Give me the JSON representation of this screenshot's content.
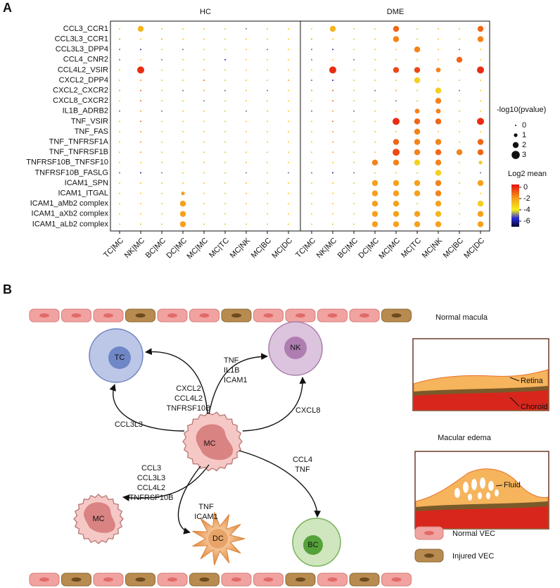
{
  "chart_data": {
    "type": "dotplot",
    "panel_label": "A",
    "panels": [
      "HC",
      "DME"
    ],
    "x_categories": [
      "TC|MC",
      "NK|MC",
      "BC|MC",
      "DC|MC",
      "MC|MC",
      "MC|TC",
      "MC|NK",
      "MC|BC",
      "MC|DC",
      "TC|MC",
      "NK|MC",
      "BC|MC",
      "DC|MC",
      "MC|MC",
      "MC|TC",
      "MC|NK",
      "MC|BC",
      "MC|DC"
    ],
    "y_categories": [
      "CCL3_CCR1",
      "CCL3L3_CCR1",
      "CCL3L3_DPP4",
      "CCL4_CNR2",
      "CCL4L2_VSIR",
      "CXCL2_DPP4",
      "CXCL2_CXCR2",
      "CXCL8_CXCR2",
      "IL1B_ADRB2",
      "TNF_VSIR",
      "TNF_FAS",
      "TNF_TNFRSF1A",
      "TNF_TNFRSF1B",
      "TNFRSF10B_TNFSF10",
      "TNFRSF10B_FASLG",
      "ICAM1_SPN",
      "ICAM1_ITGAL",
      "ICAM1_aMb2 complex",
      "ICAM1_aXb2 complex",
      "ICAM1_aLb2 complex"
    ],
    "size": [
      [
        0,
        2,
        0,
        0,
        0,
        0,
        0,
        0,
        0,
        0,
        2,
        0,
        0,
        2,
        0,
        0,
        0,
        2
      ],
      [
        0,
        0,
        0,
        0,
        0,
        0,
        0,
        0,
        0,
        0,
        0,
        0,
        0,
        2,
        0,
        0,
        0,
        2
      ],
      [
        0,
        0,
        0,
        0,
        0,
        0,
        0,
        0,
        0,
        0,
        0,
        0,
        0,
        0,
        2,
        0,
        0,
        0
      ],
      [
        0,
        0,
        0,
        0,
        0,
        0,
        0,
        0,
        0,
        0,
        0,
        0,
        0,
        0,
        0,
        0,
        2,
        0
      ],
      [
        0,
        2.5,
        0,
        0,
        0,
        0,
        0,
        0,
        0,
        0,
        2.5,
        0,
        0,
        2,
        2,
        1.5,
        0,
        2.5
      ],
      [
        0,
        0,
        0,
        0,
        0,
        0,
        0,
        0,
        0,
        0,
        0,
        0,
        0,
        0,
        2,
        0,
        0,
        0
      ],
      [
        0,
        0,
        0,
        0,
        0,
        0,
        0,
        0,
        0,
        0,
        0,
        0,
        0,
        0,
        0,
        2,
        0,
        0
      ],
      [
        0,
        0,
        0,
        0,
        0,
        0,
        0,
        0,
        0,
        0,
        0,
        0,
        0,
        0,
        0,
        2,
        0,
        0
      ],
      [
        0,
        0,
        0,
        0,
        0,
        0,
        0,
        0,
        0,
        0,
        0,
        0,
        0,
        0,
        1.5,
        1.5,
        0,
        0
      ],
      [
        0,
        0,
        0,
        0,
        0,
        0,
        0,
        0,
        0,
        0,
        0,
        0,
        0,
        2.5,
        2,
        2,
        0,
        2.5
      ],
      [
        0,
        0,
        0,
        0,
        0,
        0,
        0,
        0,
        0,
        0,
        0,
        0,
        0,
        0,
        2,
        0,
        0,
        0
      ],
      [
        0,
        0,
        0,
        0,
        0,
        0,
        0,
        0,
        0,
        0,
        0,
        0,
        0,
        2,
        2,
        2,
        0,
        2
      ],
      [
        0,
        0,
        0,
        0,
        0,
        0,
        0,
        0,
        0,
        0,
        0,
        0,
        0,
        2.5,
        2,
        2,
        2,
        2
      ],
      [
        0,
        0,
        0,
        0,
        0,
        0,
        0,
        0,
        0,
        0,
        0,
        0,
        2,
        2,
        2,
        2,
        0,
        1
      ],
      [
        0,
        0,
        0,
        0,
        0,
        0,
        0,
        0,
        0,
        0,
        0,
        0,
        0,
        0,
        0,
        2,
        0,
        0
      ],
      [
        0,
        0,
        0,
        0,
        0,
        0,
        0,
        0,
        0,
        0,
        0,
        0,
        2,
        2,
        2,
        2,
        0,
        2
      ],
      [
        0,
        0,
        0,
        1,
        0,
        0,
        0,
        0,
        0,
        0,
        0,
        0,
        2,
        2,
        2,
        2,
        0,
        0
      ],
      [
        0,
        0,
        0,
        2,
        0,
        0,
        0,
        0,
        0,
        0,
        0,
        0,
        2,
        2,
        0,
        2,
        0,
        2
      ],
      [
        0,
        0,
        0,
        2,
        0,
        0,
        0,
        0,
        0,
        0,
        0,
        0,
        2,
        2,
        2,
        2,
        0,
        2
      ],
      [
        0,
        0,
        0,
        2,
        0,
        0,
        0,
        0,
        0,
        0,
        0,
        0,
        2,
        2,
        2,
        2,
        0,
        2
      ]
    ],
    "color_values": [
      [
        -3,
        -2.5,
        -3,
        -3,
        -3,
        -3,
        -5,
        -3,
        -3,
        -3,
        -2.5,
        -3,
        -3,
        -1,
        -3,
        -3,
        -3,
        -1
      ],
      [
        -2,
        -3,
        -2,
        -3,
        -3,
        -3,
        -3,
        -3,
        -3,
        -2,
        -3,
        -3,
        -3,
        -1.5,
        -3,
        -3,
        -3,
        -1.5
      ],
      [
        -5,
        -6,
        -3,
        -5,
        -3,
        -3,
        -3,
        -5,
        -3,
        -5,
        -6,
        -3,
        -3,
        -3,
        -1.5,
        -3,
        -5,
        -3
      ],
      [
        -5,
        -3,
        -5,
        -3,
        -3,
        -6,
        -3,
        -3,
        -3,
        -5,
        -3,
        -5,
        -3,
        -3,
        -3,
        -3,
        -1,
        -3
      ],
      [
        -3,
        0,
        -3,
        -3,
        -2,
        -3,
        -3,
        -3,
        -3,
        -3,
        0,
        -3,
        -3,
        -0.5,
        -0.5,
        -1.5,
        -3,
        0
      ],
      [
        -3,
        -2,
        -3,
        -3,
        -1,
        -3,
        -3,
        -3,
        -2,
        -5,
        -6,
        -3,
        -3,
        -3,
        -3.2,
        -3,
        -3,
        -3
      ],
      [
        -2,
        -1,
        -3,
        -5,
        -2,
        -5,
        -3,
        -5,
        -3,
        -2,
        -1,
        -3,
        -5,
        -2,
        -3,
        -3.2,
        -5,
        -3
      ],
      [
        -3,
        -1,
        -3,
        -3,
        -5,
        -3,
        -3,
        -3,
        -3,
        -3,
        -1,
        -3,
        -3,
        -5,
        -3,
        -1.5,
        -3,
        -3
      ],
      [
        -5,
        -2,
        -5,
        -3,
        -3,
        -3,
        -5,
        -3,
        -3,
        -5,
        -2,
        -5,
        -3,
        -3,
        -1.5,
        -1.5,
        -3,
        -3
      ],
      [
        -3,
        -1,
        -3,
        -3,
        -3,
        -3,
        -3,
        -3,
        -3,
        -3,
        -1,
        -3,
        -3,
        0,
        -1,
        -1,
        -3,
        0
      ],
      [
        -3,
        -2,
        -3,
        -3,
        -3,
        -3,
        -3,
        -3,
        -3,
        -3,
        -2,
        -3,
        -3,
        -3,
        -1.5,
        -3,
        -3,
        -3
      ],
      [
        -3,
        -2,
        -3,
        -3,
        -3,
        -3,
        -3,
        -3,
        -3,
        -3,
        -2,
        -3,
        -3,
        -1,
        -1.5,
        -1.5,
        -3,
        -1
      ],
      [
        -3,
        -2,
        -3,
        -3,
        -3,
        -3,
        -3,
        -3,
        -3,
        -3,
        -2,
        -3,
        -3,
        -0.5,
        -1.5,
        -1,
        -1.5,
        -1
      ],
      [
        -3,
        -3,
        -3,
        -3,
        -3,
        -3,
        -3,
        -3,
        -3,
        -3,
        -3,
        -3,
        -1.5,
        -1.5,
        -3.2,
        -1.5,
        -3,
        -3
      ],
      [
        -5,
        -6,
        -5,
        -3,
        -3,
        -3,
        -5,
        -3,
        -5,
        -5,
        -6,
        -5,
        -3,
        -3,
        -3,
        -3.2,
        -3,
        -5
      ],
      [
        -3,
        -3,
        -3,
        -3,
        -3,
        -3,
        -3,
        -3,
        -3,
        -3,
        -3,
        -3,
        -2,
        -2,
        -2,
        -1.5,
        -3,
        -2
      ],
      [
        -3,
        -3,
        -3,
        -2,
        -3,
        -3,
        -3,
        -3,
        -3,
        -3,
        -3,
        -3,
        -2,
        -2,
        -2,
        -1.5,
        -3,
        -3
      ],
      [
        -3,
        -3,
        -3,
        -2,
        -3,
        -3,
        -3,
        -3,
        -3,
        -3,
        -3,
        -3,
        -2,
        -2,
        -3,
        -2,
        -3,
        -3.2
      ],
      [
        -3,
        -3,
        -3,
        -2,
        -3,
        -3,
        -3,
        -3,
        -3,
        -3,
        -3,
        -3,
        -2,
        -2,
        -2,
        -2.5,
        -3,
        -2
      ],
      [
        -3,
        -3,
        -3,
        -2,
        -3,
        -3,
        -3,
        -3,
        -3,
        -3,
        -3,
        -3,
        -2,
        -2,
        -2,
        -2,
        -3,
        -2
      ]
    ],
    "size_legend": {
      "title": "-log10(pvalue)",
      "ticks": [
        0,
        1,
        2,
        3
      ]
    },
    "color_legend": {
      "title": "Log2 mean",
      "ticks": [
        0,
        -2,
        -4,
        -6
      ]
    },
    "colorlim": [
      -7,
      0.5
    ],
    "colorscale": [
      {
        "value": -7,
        "color": "#05052a"
      },
      {
        "value": -5.5,
        "color": "#2a2ad8"
      },
      {
        "value": -4,
        "color": "#f2ef1e"
      },
      {
        "value": -2,
        "color": "#f7a01c"
      },
      {
        "value": 0.5,
        "color": "#e60f0f"
      }
    ]
  },
  "diagram": {
    "panel_label": "B",
    "cells": {
      "tc": "TC",
      "nk": "NK",
      "mc": "MC",
      "mc2": "MC",
      "dc": "DC",
      "bc": "BC"
    },
    "interactions": {
      "to_tc": [
        "CXCL2",
        "CCL4L2",
        "TNFRSF10B"
      ],
      "to_nk": [
        "TNF",
        "IL1B",
        "ICAM1"
      ],
      "arc_tc": [
        "CCL3L3"
      ],
      "arc_nk": [
        "CXCL8"
      ],
      "to_bc": [
        "CCL4",
        "TNF"
      ],
      "to_mc": [
        "CCL3",
        "CCL3L3",
        "CCL4L2",
        "TNFRSF10B"
      ],
      "to_dc": [
        "TNF",
        "ICAM1"
      ]
    },
    "normal_macula": {
      "title": "Normal macula",
      "retina": "Retina",
      "choroid": "Choroid"
    },
    "macular_edema": {
      "title": "Macular edema",
      "fluid": "Fluid"
    },
    "legend": {
      "normal": "Normal VEC",
      "injured": "Injured VEC"
    }
  }
}
